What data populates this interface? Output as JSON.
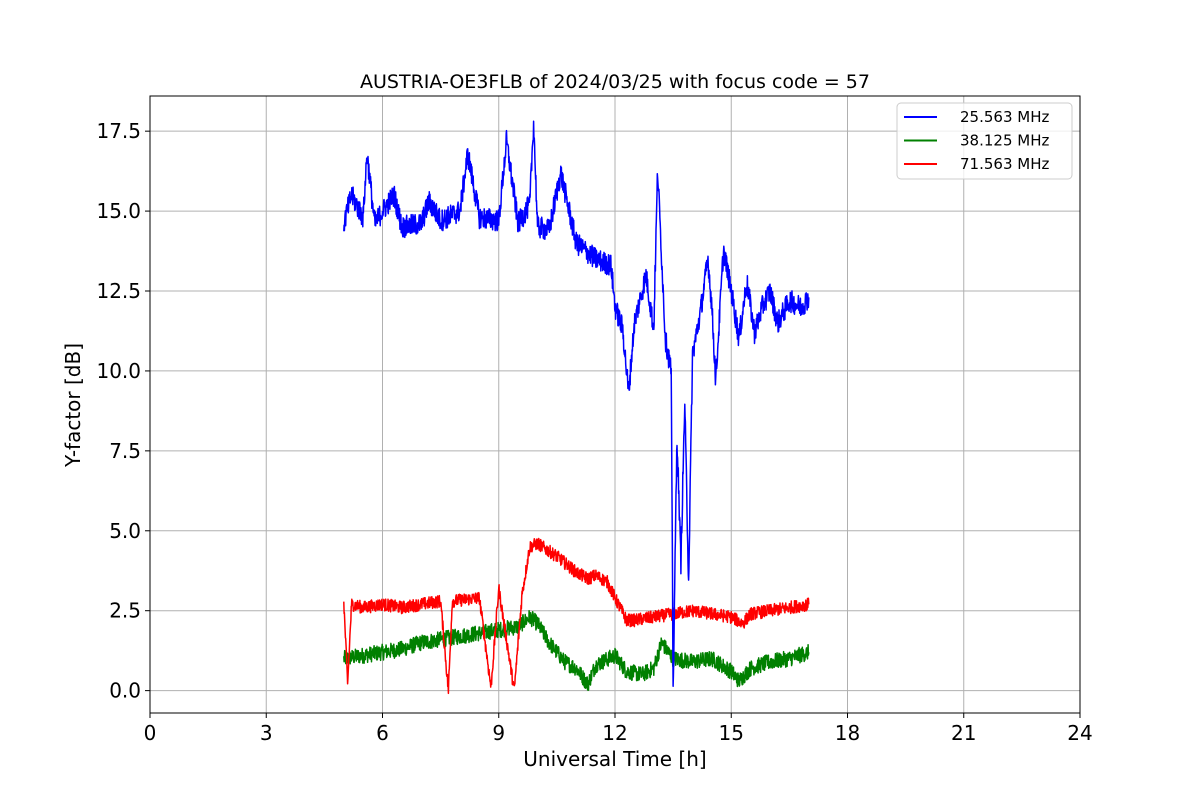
{
  "chart_data": {
    "type": "line",
    "title": "AUSTRIA-OE3FLB of 2024/03/25 with focus code = 57",
    "xlabel": "Universal Time [h]",
    "ylabel": "Y-factor [dB]",
    "xlim": [
      0,
      24
    ],
    "ylim": [
      -0.7,
      18.6
    ],
    "xticks": [
      0,
      3,
      6,
      9,
      12,
      15,
      18,
      21,
      24
    ],
    "xtick_labels": [
      "0",
      "3",
      "6",
      "9",
      "12",
      "15",
      "18",
      "21",
      "24"
    ],
    "yticks": [
      0.0,
      2.5,
      5.0,
      7.5,
      10.0,
      12.5,
      15.0,
      17.5
    ],
    "ytick_labels": [
      "0.0",
      "2.5",
      "5.0",
      "7.5",
      "10.0",
      "12.5",
      "15.0",
      "17.5"
    ],
    "grid": true,
    "legend_position": "top-right",
    "series": [
      {
        "name": "25.563 MHz",
        "color": "#0000ff",
        "points": [
          [
            5.0,
            14.6
          ],
          [
            5.2,
            15.5
          ],
          [
            5.5,
            14.8
          ],
          [
            5.6,
            16.8
          ],
          [
            5.8,
            14.6
          ],
          [
            6.0,
            15.0
          ],
          [
            6.3,
            15.5
          ],
          [
            6.5,
            14.5
          ],
          [
            7.0,
            14.6
          ],
          [
            7.2,
            15.3
          ],
          [
            7.5,
            14.7
          ],
          [
            8.0,
            15.0
          ],
          [
            8.2,
            16.8
          ],
          [
            8.5,
            14.8
          ],
          [
            9.0,
            14.7
          ],
          [
            9.2,
            17.2
          ],
          [
            9.5,
            14.6
          ],
          [
            9.8,
            15.2
          ],
          [
            9.9,
            17.8
          ],
          [
            10.0,
            14.5
          ],
          [
            10.3,
            14.4
          ],
          [
            10.6,
            16.2
          ],
          [
            11.0,
            14.0
          ],
          [
            11.5,
            13.5
          ],
          [
            11.9,
            13.3
          ],
          [
            12.0,
            12.0
          ],
          [
            12.2,
            11.3
          ],
          [
            12.35,
            9.3
          ],
          [
            12.5,
            11.5
          ],
          [
            12.8,
            13.0
          ],
          [
            13.0,
            11.3
          ],
          [
            13.1,
            16.3
          ],
          [
            13.3,
            11.0
          ],
          [
            13.45,
            10.0
          ],
          [
            13.5,
            0.0
          ],
          [
            13.6,
            8.0
          ],
          [
            13.7,
            4.0
          ],
          [
            13.8,
            9.0
          ],
          [
            13.9,
            3.4
          ],
          [
            14.0,
            10.5
          ],
          [
            14.2,
            11.8
          ],
          [
            14.4,
            13.5
          ],
          [
            14.5,
            12.0
          ],
          [
            14.6,
            9.7
          ],
          [
            14.8,
            13.8
          ],
          [
            15.0,
            12.5
          ],
          [
            15.2,
            11.0
          ],
          [
            15.4,
            12.8
          ],
          [
            15.6,
            11.2
          ],
          [
            15.8,
            12.0
          ],
          [
            16.0,
            12.5
          ],
          [
            16.2,
            11.5
          ],
          [
            16.5,
            12.2
          ],
          [
            16.8,
            12.0
          ],
          [
            17.0,
            12.3
          ]
        ]
      },
      {
        "name": "38.125 MHz",
        "color": "#008000",
        "points": [
          [
            5.0,
            1.0
          ],
          [
            5.5,
            1.1
          ],
          [
            6.0,
            1.2
          ],
          [
            6.5,
            1.3
          ],
          [
            7.0,
            1.5
          ],
          [
            7.5,
            1.6
          ],
          [
            8.0,
            1.7
          ],
          [
            8.5,
            1.8
          ],
          [
            9.0,
            1.9
          ],
          [
            9.5,
            2.0
          ],
          [
            9.8,
            2.3
          ],
          [
            10.0,
            2.1
          ],
          [
            10.3,
            1.5
          ],
          [
            10.7,
            0.9
          ],
          [
            11.0,
            0.7
          ],
          [
            11.3,
            0.2
          ],
          [
            11.5,
            0.8
          ],
          [
            12.0,
            1.1
          ],
          [
            12.3,
            0.6
          ],
          [
            12.7,
            0.5
          ],
          [
            13.0,
            0.7
          ],
          [
            13.2,
            1.5
          ],
          [
            13.5,
            1.0
          ],
          [
            14.0,
            0.9
          ],
          [
            14.5,
            1.0
          ],
          [
            15.0,
            0.6
          ],
          [
            15.2,
            0.3
          ],
          [
            15.5,
            0.7
          ],
          [
            16.0,
            0.9
          ],
          [
            16.5,
            1.0
          ],
          [
            17.0,
            1.2
          ]
        ]
      },
      {
        "name": "71.563 MHz",
        "color": "#ff0000",
        "points": [
          [
            5.0,
            2.8
          ],
          [
            5.1,
            0.2
          ],
          [
            5.2,
            2.7
          ],
          [
            5.5,
            2.6
          ],
          [
            6.0,
            2.7
          ],
          [
            6.5,
            2.6
          ],
          [
            7.0,
            2.7
          ],
          [
            7.5,
            2.8
          ],
          [
            7.7,
            0.0
          ],
          [
            7.8,
            2.8
          ],
          [
            8.5,
            2.9
          ],
          [
            8.8,
            0.1
          ],
          [
            9.0,
            3.2
          ],
          [
            9.4,
            0.0
          ],
          [
            9.6,
            3.0
          ],
          [
            9.8,
            4.5
          ],
          [
            10.0,
            4.6
          ],
          [
            10.5,
            4.2
          ],
          [
            11.0,
            3.7
          ],
          [
            11.3,
            3.5
          ],
          [
            11.5,
            3.6
          ],
          [
            11.8,
            3.4
          ],
          [
            12.0,
            2.9
          ],
          [
            12.3,
            2.2
          ],
          [
            12.5,
            2.2
          ],
          [
            13.0,
            2.3
          ],
          [
            13.5,
            2.4
          ],
          [
            14.0,
            2.5
          ],
          [
            14.5,
            2.4
          ],
          [
            15.0,
            2.3
          ],
          [
            15.3,
            2.1
          ],
          [
            15.5,
            2.4
          ],
          [
            16.0,
            2.5
          ],
          [
            16.5,
            2.6
          ],
          [
            17.0,
            2.7
          ]
        ]
      }
    ]
  }
}
